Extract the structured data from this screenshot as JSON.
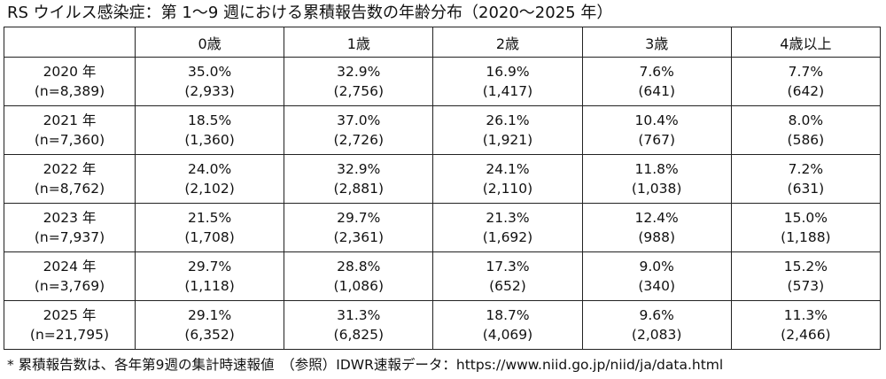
{
  "title": "RS ウイルス感染症：第 1～9 週における累積報告数の年齢分布（2020～2025 年）",
  "table": {
    "corner": "",
    "columns": [
      "0歳",
      "1歳",
      "2歳",
      "3歳",
      "4歳以上"
    ],
    "rows": [
      {
        "year": "2020 年",
        "n": "(n=8,389)",
        "cells": [
          {
            "pct": "35.0%",
            "count": "(2,933)"
          },
          {
            "pct": "32.9%",
            "count": "(2,756)"
          },
          {
            "pct": "16.9%",
            "count": "(1,417)"
          },
          {
            "pct": "7.6%",
            "count": "(641)"
          },
          {
            "pct": "7.7%",
            "count": "(642)"
          }
        ]
      },
      {
        "year": "2021 年",
        "n": "(n=7,360)",
        "cells": [
          {
            "pct": "18.5%",
            "count": "(1,360)"
          },
          {
            "pct": "37.0%",
            "count": "(2,726)"
          },
          {
            "pct": "26.1%",
            "count": "(1,921)"
          },
          {
            "pct": "10.4%",
            "count": "(767)"
          },
          {
            "pct": "8.0%",
            "count": "(586)"
          }
        ]
      },
      {
        "year": "2022 年",
        "n": "(n=8,762)",
        "cells": [
          {
            "pct": "24.0%",
            "count": "(2,102)"
          },
          {
            "pct": "32.9%",
            "count": "(2,881)"
          },
          {
            "pct": "24.1%",
            "count": "(2,110)"
          },
          {
            "pct": "11.8%",
            "count": "(1,038)"
          },
          {
            "pct": "7.2%",
            "count": "(631)"
          }
        ]
      },
      {
        "year": "2023 年",
        "n": "(n=7,937)",
        "cells": [
          {
            "pct": "21.5%",
            "count": "(1,708)"
          },
          {
            "pct": "29.7%",
            "count": "(2,361)"
          },
          {
            "pct": "21.3%",
            "count": "(1,692)"
          },
          {
            "pct": "12.4%",
            "count": "(988)"
          },
          {
            "pct": "15.0%",
            "count": "(1,188)"
          }
        ]
      },
      {
        "year": "2024 年",
        "n": "(n=3,769)",
        "cells": [
          {
            "pct": "29.7%",
            "count": "(1,118)"
          },
          {
            "pct": "28.8%",
            "count": "(1,086)"
          },
          {
            "pct": "17.3%",
            "count": "(652)"
          },
          {
            "pct": "9.0%",
            "count": "(340)"
          },
          {
            "pct": "15.2%",
            "count": "(573)"
          }
        ]
      },
      {
        "year": "2025 年",
        "n": "(n=21,795)",
        "cells": [
          {
            "pct": "29.1%",
            "count": "(6,352)"
          },
          {
            "pct": "31.3%",
            "count": "(6,825)"
          },
          {
            "pct": "18.7%",
            "count": "(4,069)"
          },
          {
            "pct": "9.6%",
            "count": "(2,083)"
          },
          {
            "pct": "11.3%",
            "count": "(2,466)"
          }
        ]
      }
    ]
  },
  "footnote": "* 累積報告数は、各年第9週の集計時速報値　（参照）IDWR速報データ：https://www.niid.go.jp/niid/ja/data.html",
  "colors": {
    "text": "#111111",
    "border": "#222222",
    "background": "#ffffff"
  }
}
